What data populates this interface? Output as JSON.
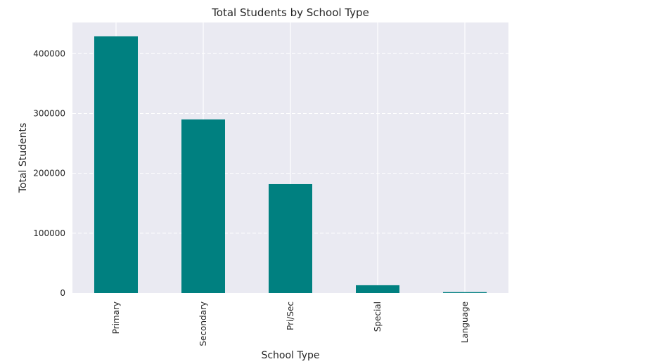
{
  "chart_data": {
    "type": "bar",
    "title": "Total Students by School Type",
    "xlabel": "School Type",
    "ylabel": "Total Students",
    "categories": [
      "Primary",
      "Secondary",
      "Pri/Sec",
      "Special",
      "Language"
    ],
    "values": [
      429000,
      290000,
      182000,
      13000,
      1500
    ],
    "ylim": [
      0,
      452000
    ],
    "yticks": [
      0,
      100000,
      200000,
      300000,
      400000
    ],
    "ytick_labels": [
      "0",
      "100000",
      "200000",
      "300000",
      "400000"
    ],
    "grid": true,
    "bar_color": "#008080",
    "plot_background": "#eaeaf2"
  }
}
